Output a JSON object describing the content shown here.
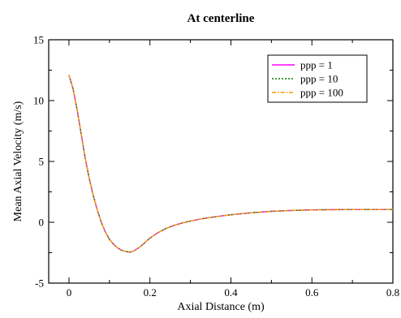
{
  "chart_data": {
    "type": "line",
    "title": "At centerline",
    "xlabel": "Axial Distance (m)",
    "ylabel": "Mean Axial Velocity (m/s)",
    "xlim": [
      -0.05,
      0.8
    ],
    "ylim": [
      -5,
      15
    ],
    "xticks": [
      0,
      0.2,
      0.4,
      0.6,
      0.8
    ],
    "xtick_labels": [
      "0",
      "0.2",
      "0.4",
      "0.6",
      "0.8"
    ],
    "yticks": [
      -5,
      0,
      5,
      10,
      15
    ],
    "ytick_labels": [
      "-5",
      "0",
      "5",
      "10",
      "15"
    ],
    "grid": false,
    "legend_position": "top-right",
    "x": [
      0.0,
      0.01,
      0.02,
      0.03,
      0.04,
      0.05,
      0.06,
      0.07,
      0.08,
      0.09,
      0.1,
      0.11,
      0.12,
      0.13,
      0.14,
      0.15,
      0.16,
      0.17,
      0.18,
      0.19,
      0.2,
      0.22,
      0.24,
      0.26,
      0.28,
      0.3,
      0.33,
      0.36,
      0.4,
      0.45,
      0.5,
      0.55,
      0.6,
      0.65,
      0.7,
      0.75,
      0.8
    ],
    "series": [
      {
        "name": "ppp = 1",
        "color": "#ff00ff",
        "style": "solid",
        "values": [
          12.1,
          11.0,
          9.3,
          7.3,
          5.3,
          3.6,
          2.2,
          1.0,
          0.0,
          -0.8,
          -1.4,
          -1.8,
          -2.1,
          -2.3,
          -2.4,
          -2.45,
          -2.35,
          -2.15,
          -1.9,
          -1.6,
          -1.3,
          -0.85,
          -0.5,
          -0.25,
          -0.05,
          0.1,
          0.3,
          0.45,
          0.62,
          0.78,
          0.9,
          0.97,
          1.02,
          1.04,
          1.05,
          1.05,
          1.05
        ]
      },
      {
        "name": "ppp = 10",
        "color": "#008000",
        "style": "dotted",
        "values": [
          12.1,
          11.0,
          9.3,
          7.3,
          5.3,
          3.6,
          2.2,
          1.0,
          0.0,
          -0.8,
          -1.4,
          -1.8,
          -2.1,
          -2.3,
          -2.4,
          -2.45,
          -2.35,
          -2.15,
          -1.9,
          -1.6,
          -1.3,
          -0.85,
          -0.5,
          -0.25,
          -0.05,
          0.1,
          0.3,
          0.45,
          0.62,
          0.78,
          0.9,
          0.97,
          1.02,
          1.04,
          1.05,
          1.05,
          1.05
        ]
      },
      {
        "name": "ppp = 100",
        "color": "#ff9900",
        "style": "dashdot",
        "values": [
          12.1,
          11.0,
          9.3,
          7.3,
          5.3,
          3.6,
          2.2,
          1.0,
          0.0,
          -0.8,
          -1.4,
          -1.8,
          -2.1,
          -2.3,
          -2.4,
          -2.45,
          -2.35,
          -2.15,
          -1.9,
          -1.6,
          -1.3,
          -0.85,
          -0.5,
          -0.25,
          -0.05,
          0.1,
          0.3,
          0.45,
          0.62,
          0.78,
          0.9,
          0.97,
          1.02,
          1.04,
          1.05,
          1.05,
          1.05
        ]
      }
    ]
  }
}
